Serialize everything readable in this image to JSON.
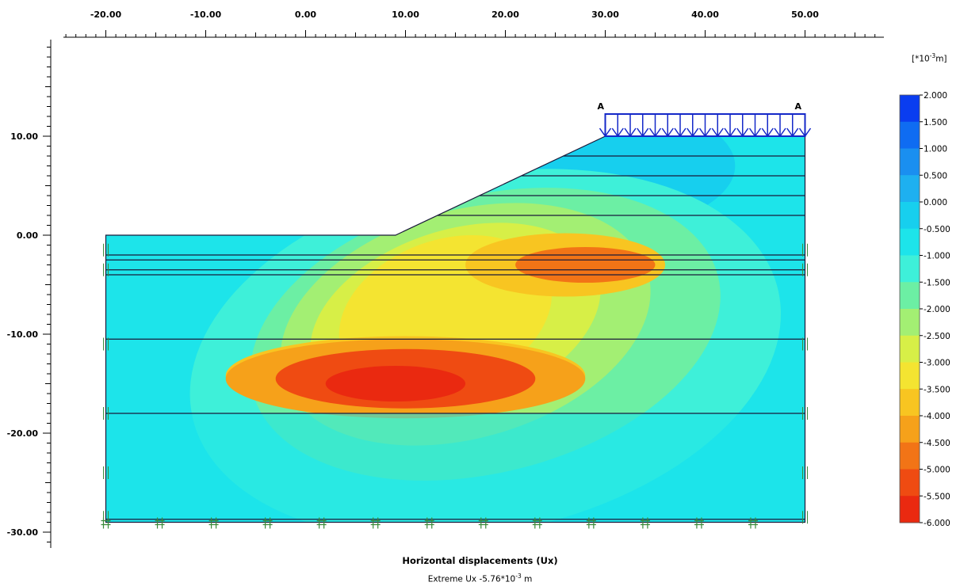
{
  "chart_data": {
    "type": "heatmap",
    "title": "Horizontal displacements (Ux)",
    "extreme_prefix": "Extreme Ux -5.76*10",
    "extreme_exp": "-3",
    "extreme_suffix": " m",
    "unit_prefix": "[*10",
    "unit_exp": "-3",
    "unit_suffix": "m]",
    "x_ticks": [
      "-20.00",
      "-10.00",
      "0.00",
      "10.00",
      "20.00",
      "30.00",
      "40.00",
      "50.00"
    ],
    "y_ticks": [
      "10.00",
      "0.00",
      "-10.00",
      "-20.00",
      "-30.00"
    ],
    "xlim": [
      -24,
      58
    ],
    "ylim": [
      -32,
      20
    ],
    "legend_levels": [
      "2.000",
      "1.500",
      "1.000",
      "0.500",
      "0.000",
      "-0.500",
      "-1.000",
      "-1.500",
      "-2.000",
      "-2.500",
      "-3.000",
      "-3.500",
      "-4.000",
      "-4.500",
      "-5.000",
      "-5.500",
      "-6.000"
    ],
    "legend_colors": [
      "#0a3df0",
      "#0f6cf2",
      "#1a8ff0",
      "#1eb0f0",
      "#17cfee",
      "#1de4ea",
      "#3ef0d9",
      "#6cefa4",
      "#a3ef73",
      "#d7ef47",
      "#f4e431",
      "#f8c521",
      "#f6a11a",
      "#f27416",
      "#ef4b12",
      "#ea2910",
      "#e8150e"
    ],
    "point_labels": [
      "A",
      "A"
    ],
    "geometry": {
      "soil_bottom": -29,
      "soil_left": -20,
      "soil_right": 50,
      "ground_level": 0,
      "crest_x": 30,
      "crest_y": 10,
      "toe_x": 9,
      "layer_lines_y": [
        -2,
        -2.5,
        -3.5,
        -4,
        -10.5,
        -18,
        -28.7
      ],
      "embankment_lines_y": [
        2,
        4,
        6,
        8
      ]
    },
    "displacement_zones": [
      {
        "cx": 26,
        "cy": -3,
        "rx": 10,
        "ry": 3.2,
        "level": -3.5
      },
      {
        "cx": 28,
        "cy": -3,
        "rx": 7,
        "ry": 1.8,
        "level": -4.5
      },
      {
        "cx": 10,
        "cy": -14.5,
        "rx": 18,
        "ry": 4,
        "level": -4
      },
      {
        "cx": 10,
        "cy": -14.5,
        "rx": 13,
        "ry": 3,
        "level": -5
      },
      {
        "cx": 9,
        "cy": -15,
        "rx": 7,
        "ry": 1.8,
        "level": -5.5
      }
    ]
  }
}
